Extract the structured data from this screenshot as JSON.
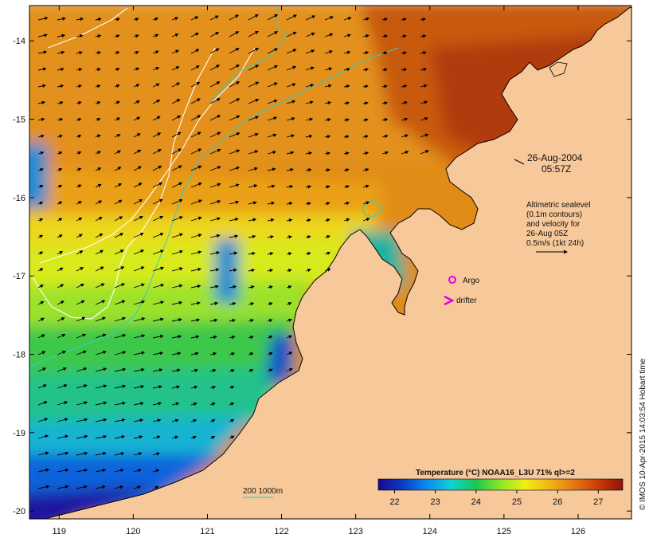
{
  "map": {
    "lon_ticks": [
      "119",
      "120",
      "121",
      "122",
      "123",
      "124",
      "125",
      "126"
    ],
    "lat_ticks": [
      "-14",
      "-15",
      "-16",
      "-17",
      "-18",
      "-19",
      "-20"
    ],
    "lon_range": [
      118.6,
      126.72
    ],
    "lat_range": [
      -20.1,
      -13.55
    ]
  },
  "annotations": {
    "date": "26-Aug-2004",
    "time": "05:57Z",
    "altimetry_lines": [
      "Altimetric sealevel",
      "(0.1m contours)",
      "and velocity for",
      "26-Aug 05Z",
      "0.5m/s (1kt 24h)"
    ],
    "argo_label": "Argo",
    "drifter_label": "drifter",
    "argo_color": "#e000e0",
    "drifter_color": "#e000e0"
  },
  "bathymetry": {
    "label": "200 1000m",
    "color": "#33cccc"
  },
  "colorbar": {
    "title": "Temperature (°C) NOAA16_L3U 71% ql>=2",
    "ticks": [
      "22",
      "23",
      "24",
      "25",
      "26",
      "27"
    ],
    "range": [
      21.6,
      27.6
    ],
    "colors": [
      "#1a0a8c",
      "#0a3cc8",
      "#0a8cf0",
      "#10d2d2",
      "#18c850",
      "#8ce628",
      "#f0f014",
      "#f0b414",
      "#e67814",
      "#c83c0a",
      "#8c1408"
    ]
  },
  "land_color": "#f7c89a",
  "credit": "© IMOS 10-Apr-2015 14:03:54 Hobart time"
}
